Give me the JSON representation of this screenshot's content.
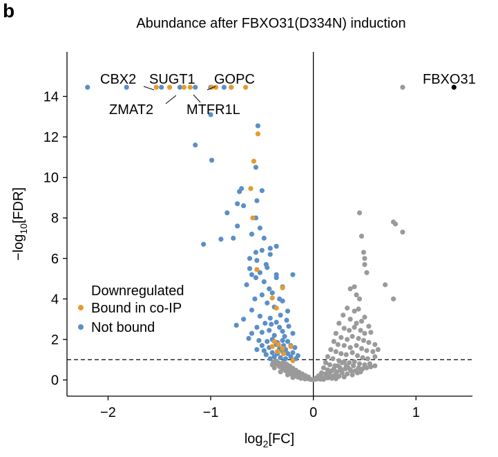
{
  "panel_label": "b",
  "chart_data": {
    "type": "scatter",
    "title": "Abundance after FBXO31(D334N) induction",
    "xlabel": "log2[FC]",
    "ylabel": "−log10[FDR]",
    "xlim": [
      -2.4,
      1.55
    ],
    "ylim": [
      -0.8,
      16.2
    ],
    "xticks": [
      -2,
      -1,
      0,
      1
    ],
    "xtick_labels": [
      "−2",
      "−1",
      "0",
      "1"
    ],
    "yticks": [
      0,
      2,
      4,
      6,
      8,
      10,
      12,
      14
    ],
    "ytick_labels": [
      "0",
      "2",
      "4",
      "6",
      "8",
      "10",
      "12",
      "14"
    ],
    "threshold_y": 1,
    "vline_x": 0,
    "colors": {
      "bound": "#e69a2e",
      "not_bound": "#5b8fc7",
      "other": "#9a9a9a",
      "highlight": "#000000",
      "axis": "#000000"
    },
    "legend": {
      "title": "Downregulated",
      "entries": [
        {
          "label": "Bound in co-IP",
          "series": "bound"
        },
        {
          "label": "Not bound",
          "series": "not_bound"
        }
      ]
    },
    "annotations": [
      {
        "label": "CBX2",
        "x": -1.52,
        "y": 14.45
      },
      {
        "label": "SUGT1",
        "x": -1.26,
        "y": 14.45
      },
      {
        "label": "GOPC",
        "x": -0.99,
        "y": 14.45
      },
      {
        "label": "ZMAT2",
        "x": -1.36,
        "y": 14.45
      },
      {
        "label": "MTFR1L",
        "x": -1.1,
        "y": 14.45
      },
      {
        "label": "FBXO31",
        "x": 1.37,
        "y": 14.45
      }
    ],
    "series": [
      {
        "name": "not_bound",
        "points": [
          [
            -2.2,
            14.45
          ],
          [
            -1.82,
            14.45
          ],
          [
            -1.48,
            14.45
          ],
          [
            -1.3,
            14.45
          ],
          [
            -1.15,
            14.45
          ],
          [
            -1.0,
            14.45
          ],
          [
            -0.87,
            14.45
          ],
          [
            -0.8,
            14.45
          ],
          [
            -1.0,
            13.1
          ],
          [
            -0.54,
            12.55
          ],
          [
            -1.15,
            11.6
          ],
          [
            -0.99,
            10.85
          ],
          [
            -0.56,
            10.5
          ],
          [
            -0.7,
            9.45
          ],
          [
            -0.72,
            9.3
          ],
          [
            -0.5,
            9.35
          ],
          [
            -0.55,
            8.85
          ],
          [
            -0.74,
            8.7
          ],
          [
            -0.68,
            8.6
          ],
          [
            -0.84,
            8.25
          ],
          [
            -0.74,
            7.6
          ],
          [
            -0.78,
            7.0
          ],
          [
            -0.6,
            7.2
          ],
          [
            -0.56,
            8.0
          ],
          [
            -0.52,
            7.5
          ],
          [
            -0.48,
            7.0
          ],
          [
            -0.42,
            6.5
          ],
          [
            -1.07,
            6.7
          ],
          [
            -0.9,
            6.95
          ],
          [
            -0.56,
            6.3
          ],
          [
            -0.36,
            6.6
          ],
          [
            -0.5,
            6.4
          ],
          [
            -0.62,
            6.0
          ],
          [
            -0.55,
            5.9
          ],
          [
            -0.46,
            5.7
          ],
          [
            -0.42,
            6.2
          ],
          [
            -0.62,
            5.5
          ],
          [
            -0.6,
            5.2
          ],
          [
            -0.52,
            5.3
          ],
          [
            -0.45,
            5.55
          ],
          [
            -0.36,
            5.2
          ],
          [
            -0.56,
            5.05
          ],
          [
            -0.65,
            4.7
          ],
          [
            -0.48,
            4.85
          ],
          [
            -0.43,
            4.5
          ],
          [
            -0.3,
            4.6
          ],
          [
            -0.2,
            5.2
          ],
          [
            -0.5,
            4.2
          ],
          [
            -0.4,
            4.3
          ],
          [
            -0.33,
            4.0
          ],
          [
            -0.45,
            3.8
          ],
          [
            -0.38,
            3.6
          ],
          [
            -0.3,
            3.9
          ],
          [
            -0.6,
            3.45
          ],
          [
            -0.68,
            3.0
          ],
          [
            -0.52,
            3.15
          ],
          [
            -0.42,
            3.05
          ],
          [
            -0.32,
            3.2
          ],
          [
            -0.25,
            3.4
          ],
          [
            -0.75,
            2.7
          ],
          [
            -0.47,
            2.8
          ],
          [
            -0.36,
            2.85
          ],
          [
            -0.55,
            2.6
          ],
          [
            -0.43,
            2.45
          ],
          [
            -0.33,
            2.6
          ],
          [
            -0.3,
            2.4
          ],
          [
            -0.24,
            2.65
          ],
          [
            -0.6,
            2.3
          ],
          [
            -0.5,
            2.35
          ],
          [
            -0.38,
            2.2
          ],
          [
            -0.28,
            2.15
          ],
          [
            -0.2,
            2.3
          ],
          [
            -0.63,
            2.05
          ],
          [
            -0.53,
            1.95
          ],
          [
            -0.45,
            1.9
          ],
          [
            -0.4,
            2.0
          ],
          [
            -0.35,
            1.85
          ],
          [
            -0.3,
            1.95
          ],
          [
            -0.25,
            1.9
          ],
          [
            -0.22,
            1.7
          ],
          [
            -0.18,
            1.6
          ],
          [
            -0.5,
            1.7
          ],
          [
            -0.43,
            1.6
          ],
          [
            -0.33,
            1.55
          ],
          [
            -0.27,
            1.5
          ],
          [
            -0.4,
            1.35
          ],
          [
            -0.35,
            1.3
          ],
          [
            -0.3,
            1.4
          ],
          [
            -0.25,
            1.3
          ],
          [
            -0.2,
            1.35
          ],
          [
            -0.46,
            1.25
          ],
          [
            -0.38,
            1.15
          ],
          [
            -0.32,
            1.1
          ],
          [
            -0.27,
            1.05
          ],
          [
            -0.22,
            1.15
          ],
          [
            -0.17,
            1.05
          ],
          [
            -0.42,
            1.05
          ],
          [
            -0.15,
            1.2
          ],
          [
            -0.55,
            1.5
          ],
          [
            -0.48,
            1.45
          ],
          [
            -0.36,
            1.75
          ],
          [
            -0.29,
            1.7
          ],
          [
            -0.41,
            2.75
          ],
          [
            -0.26,
            2.95
          ],
          [
            -0.57,
            4.0
          ],
          [
            -0.36,
            5.05
          ]
        ]
      },
      {
        "name": "bound",
        "points": [
          [
            -1.53,
            14.45
          ],
          [
            -1.4,
            14.45
          ],
          [
            -1.26,
            14.45
          ],
          [
            -1.2,
            14.45
          ],
          [
            -0.99,
            14.45
          ],
          [
            -0.95,
            14.45
          ],
          [
            -0.8,
            14.45
          ],
          [
            -0.66,
            14.45
          ],
          [
            -0.54,
            12.15
          ],
          [
            -0.58,
            10.8
          ],
          [
            -0.61,
            9.45
          ],
          [
            -0.59,
            8.0
          ],
          [
            -0.55,
            5.45
          ],
          [
            -0.3,
            4.55
          ],
          [
            -0.4,
            4.05
          ],
          [
            -0.36,
            3.55
          ],
          [
            -0.38,
            1.9
          ],
          [
            -0.34,
            1.75
          ],
          [
            -0.4,
            1.65
          ],
          [
            -0.3,
            1.55
          ],
          [
            -0.22,
            1.65
          ],
          [
            -0.35,
            1.4
          ],
          [
            -0.29,
            1.3
          ],
          [
            -0.2,
            0.95
          ]
        ]
      },
      {
        "name": "other",
        "points": [
          [
            0.87,
            14.45
          ],
          [
            0.45,
            8.25
          ],
          [
            0.78,
            7.8
          ],
          [
            0.8,
            7.7
          ],
          [
            0.87,
            7.3
          ],
          [
            0.47,
            7.1
          ],
          [
            0.49,
            6.3
          ],
          [
            0.5,
            6.0
          ],
          [
            0.5,
            5.7
          ],
          [
            0.52,
            5.3
          ],
          [
            0.7,
            4.7
          ],
          [
            0.78,
            4.0
          ],
          [
            0.36,
            4.5
          ],
          [
            0.4,
            4.6
          ],
          [
            0.42,
            4.2
          ],
          [
            0.45,
            4.0
          ],
          [
            0.33,
            3.55
          ],
          [
            0.4,
            3.4
          ],
          [
            0.44,
            3.5
          ],
          [
            0.5,
            3.1
          ],
          [
            0.29,
            3.2
          ],
          [
            0.36,
            3.0
          ],
          [
            0.42,
            2.8
          ],
          [
            0.47,
            2.9
          ],
          [
            0.54,
            2.65
          ],
          [
            0.25,
            2.8
          ],
          [
            0.3,
            2.55
          ],
          [
            0.35,
            2.45
          ],
          [
            0.4,
            2.6
          ],
          [
            0.46,
            2.45
          ],
          [
            0.5,
            2.3
          ],
          [
            0.56,
            2.35
          ],
          [
            0.22,
            2.3
          ],
          [
            0.27,
            2.1
          ],
          [
            0.33,
            2.0
          ],
          [
            0.38,
            2.15
          ],
          [
            0.44,
            2.05
          ],
          [
            0.49,
            1.95
          ],
          [
            0.54,
            1.85
          ],
          [
            0.6,
            1.75
          ],
          [
            0.2,
            1.9
          ],
          [
            0.24,
            1.75
          ],
          [
            0.3,
            1.7
          ],
          [
            0.36,
            1.6
          ],
          [
            0.42,
            1.7
          ],
          [
            0.47,
            1.55
          ],
          [
            0.52,
            1.45
          ],
          [
            0.58,
            1.4
          ],
          [
            0.63,
            1.5
          ],
          [
            0.17,
            1.5
          ],
          [
            0.22,
            1.4
          ],
          [
            0.27,
            1.3
          ],
          [
            0.32,
            1.25
          ],
          [
            0.38,
            1.35
          ],
          [
            0.43,
            1.2
          ],
          [
            0.48,
            1.1
          ],
          [
            0.53,
            1.05
          ],
          [
            0.6,
            1.15
          ],
          [
            0.14,
            1.15
          ],
          [
            0.19,
            1.05
          ],
          [
            0.25,
            0.95
          ],
          [
            0.3,
            0.9
          ],
          [
            0.35,
            0.85
          ],
          [
            0.4,
            0.9
          ],
          [
            0.45,
            0.8
          ],
          [
            0.5,
            0.75
          ],
          [
            0.55,
            0.8
          ],
          [
            0.12,
            0.85
          ],
          [
            0.16,
            0.75
          ],
          [
            0.21,
            0.7
          ],
          [
            0.26,
            0.6
          ],
          [
            0.31,
            0.55
          ],
          [
            0.36,
            0.5
          ],
          [
            0.41,
            0.45
          ],
          [
            0.46,
            0.4
          ],
          [
            0.1,
            0.6
          ],
          [
            0.14,
            0.5
          ],
          [
            0.18,
            0.45
          ],
          [
            0.23,
            0.4
          ],
          [
            0.28,
            0.35
          ],
          [
            0.33,
            0.3
          ],
          [
            0.38,
            0.25
          ],
          [
            0.08,
            0.35
          ],
          [
            0.12,
            0.3
          ],
          [
            0.16,
            0.25
          ],
          [
            0.2,
            0.2
          ],
          [
            0.25,
            0.18
          ],
          [
            0.3,
            0.15
          ],
          [
            0.05,
            0.2
          ],
          [
            0.08,
            0.15
          ],
          [
            0.11,
            0.12
          ],
          [
            0.14,
            0.1
          ],
          [
            0.18,
            0.08
          ],
          [
            0.22,
            0.06
          ],
          [
            0.03,
            0.1
          ],
          [
            0.05,
            0.06
          ],
          [
            0.07,
            0.04
          ],
          [
            0.1,
            0.03
          ],
          [
            0.02,
            0.03
          ],
          [
            0.0,
            0.02
          ],
          [
            -0.02,
            0.02
          ],
          [
            -0.04,
            0.05
          ],
          [
            -0.06,
            0.08
          ],
          [
            -0.09,
            0.12
          ],
          [
            -0.12,
            0.18
          ],
          [
            -0.15,
            0.25
          ],
          [
            -0.18,
            0.33
          ],
          [
            -0.21,
            0.42
          ],
          [
            -0.24,
            0.52
          ],
          [
            -0.27,
            0.62
          ],
          [
            -0.3,
            0.72
          ],
          [
            -0.33,
            0.82
          ],
          [
            -0.36,
            0.92
          ],
          [
            -0.05,
            0.15
          ],
          [
            -0.08,
            0.22
          ],
          [
            -0.11,
            0.3
          ],
          [
            -0.14,
            0.38
          ],
          [
            -0.17,
            0.48
          ],
          [
            -0.2,
            0.58
          ],
          [
            -0.23,
            0.68
          ],
          [
            -0.26,
            0.78
          ],
          [
            -0.29,
            0.88
          ],
          [
            -0.03,
            0.04
          ],
          [
            -0.07,
            0.1
          ],
          [
            -0.1,
            0.16
          ],
          [
            -0.13,
            0.22
          ],
          [
            -0.16,
            0.3
          ],
          [
            -0.19,
            0.38
          ],
          [
            -0.22,
            0.46
          ],
          [
            -0.25,
            0.55
          ],
          [
            -0.28,
            0.64
          ],
          [
            -0.31,
            0.74
          ],
          [
            -0.34,
            0.84
          ],
          [
            -0.37,
            0.95
          ],
          [
            -0.12,
            0.08
          ],
          [
            -0.15,
            0.14
          ],
          [
            -0.18,
            0.2
          ],
          [
            -0.21,
            0.28
          ],
          [
            -0.24,
            0.36
          ],
          [
            -0.27,
            0.45
          ],
          [
            -0.3,
            0.55
          ],
          [
            -0.33,
            0.66
          ],
          [
            -0.36,
            0.78
          ],
          [
            -0.39,
            0.88
          ],
          [
            -0.08,
            0.05
          ],
          [
            -0.2,
            0.12
          ],
          [
            -0.25,
            0.25
          ],
          [
            -0.32,
            0.4
          ],
          [
            -0.38,
            0.6
          ],
          [
            -0.4,
            0.75
          ],
          [
            0.15,
            0.35
          ],
          [
            0.2,
            0.55
          ],
          [
            0.24,
            0.7
          ],
          [
            0.28,
            0.85
          ],
          [
            0.32,
            0.7
          ],
          [
            0.27,
            0.48
          ],
          [
            0.22,
            0.3
          ],
          [
            0.34,
            0.6
          ],
          [
            0.39,
            0.7
          ],
          [
            0.44,
            0.6
          ],
          [
            0.48,
            0.55
          ],
          [
            0.52,
            0.6
          ],
          [
            0.56,
            0.65
          ],
          [
            0.6,
            0.7
          ],
          [
            0.43,
            0.35
          ],
          [
            0.37,
            0.45
          ],
          [
            0.18,
            0.15
          ],
          [
            0.13,
            0.2
          ],
          [
            0.09,
            0.1
          ],
          [
            0.06,
            0.09
          ]
        ]
      },
      {
        "name": "highlight",
        "points": [
          [
            1.37,
            14.45
          ]
        ]
      }
    ]
  }
}
